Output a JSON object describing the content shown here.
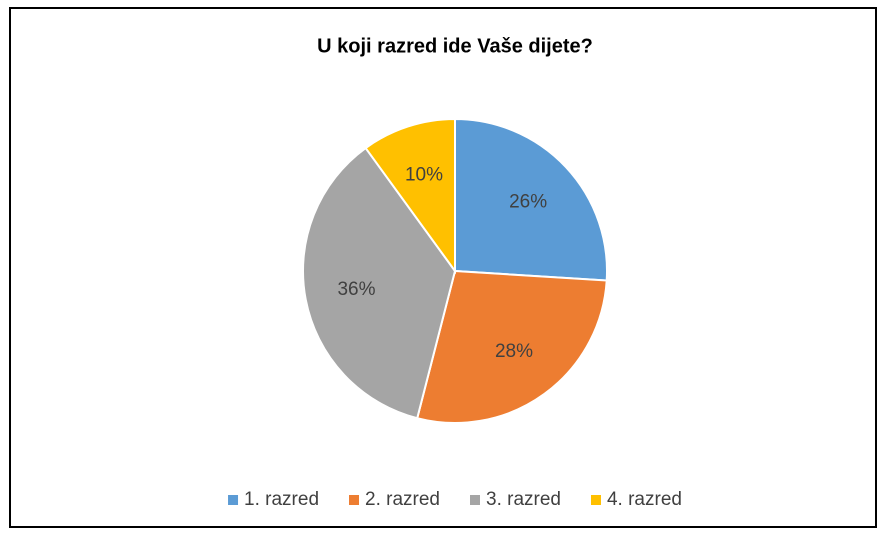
{
  "chart_data": {
    "type": "pie",
    "title": "U koji razred ide Vaše dijete?",
    "categories": [
      "1. razred",
      "2. razred",
      "3. razred",
      "4. razred"
    ],
    "values": [
      26,
      28,
      36,
      10
    ],
    "value_labels": [
      "26%",
      "28%",
      "36%",
      "10%"
    ],
    "colors": [
      "#5b9bd5",
      "#ed7d31",
      "#a5a5a5",
      "#ffc000"
    ],
    "legend": "bottom"
  }
}
